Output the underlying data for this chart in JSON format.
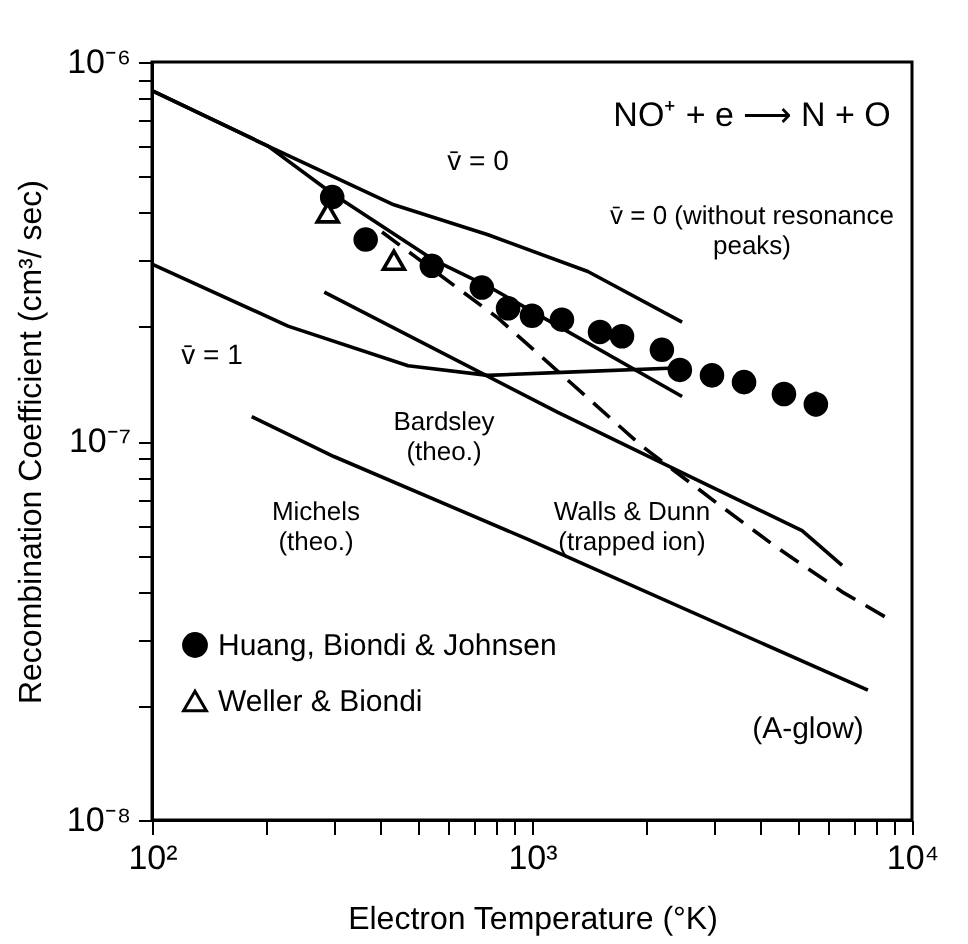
{
  "chart_data": {
    "type": "line",
    "xlabel": "Electron Temperature   (°K)",
    "ylabel": "Recombination Coefficient  (cm³/ sec)",
    "log": "xy",
    "grid": false,
    "legend": "bottom left",
    "xlim": [
      100,
      10000
    ],
    "ylim": [
      1e-08,
      1e-06
    ],
    "xticks": [
      {
        "value": 100,
        "label": "10²"
      },
      {
        "value": 200,
        "label": null
      },
      {
        "value": 300,
        "label": null
      },
      {
        "value": 400,
        "label": null
      },
      {
        "value": 500,
        "label": null
      },
      {
        "value": 600,
        "label": null
      },
      {
        "value": 700,
        "label": null
      },
      {
        "value": 800,
        "label": null
      },
      {
        "value": 900,
        "label": null
      },
      {
        "value": 1000,
        "label": "10³"
      },
      {
        "value": 2000,
        "label": null
      },
      {
        "value": 3000,
        "label": null
      },
      {
        "value": 4000,
        "label": null
      },
      {
        "value": 5000,
        "label": null
      },
      {
        "value": 6000,
        "label": null
      },
      {
        "value": 7000,
        "label": null
      },
      {
        "value": 8000,
        "label": null
      },
      {
        "value": 9000,
        "label": null
      },
      {
        "value": 10000,
        "label": "10⁴"
      }
    ],
    "yticks": [
      {
        "value": 1e-08,
        "label": "10⁻⁸"
      },
      {
        "value": 2e-08,
        "label": null
      },
      {
        "value": 3e-08,
        "label": null
      },
      {
        "value": 4e-08,
        "label": null
      },
      {
        "value": 5e-08,
        "label": null
      },
      {
        "value": 6e-08,
        "label": null
      },
      {
        "value": 7e-08,
        "label": null
      },
      {
        "value": 8e-08,
        "label": null
      },
      {
        "value": 9e-08,
        "label": null
      },
      {
        "value": 1e-07,
        "label": "10⁻⁷"
      },
      {
        "value": 2e-07,
        "label": null
      },
      {
        "value": 3e-07,
        "label": null
      },
      {
        "value": 4e-07,
        "label": null
      },
      {
        "value": 5e-07,
        "label": null
      },
      {
        "value": 6e-07,
        "label": null
      },
      {
        "value": 7e-07,
        "label": null
      },
      {
        "value": 8e-07,
        "label": null
      },
      {
        "value": 9e-07,
        "label": null
      },
      {
        "value": 1e-06,
        "label": "10⁻⁶"
      }
    ],
    "series": [
      {
        "color": "#000000",
        "line_style": "solid",
        "x": [
          100,
          202,
          433,
          766,
          1403,
          2483
        ],
        "values": [
          8.4e-07,
          6e-07,
          4.2e-07,
          3.5e-07,
          2.8e-07,
          2.06e-07
        ]
      },
      {
        "color": "#000000",
        "line_style": "solid",
        "x": [
          100,
          202,
          298,
          552,
          766,
          2483
        ],
        "values": [
          8.4e-07,
          6e-07,
          4.5e-07,
          3e-07,
          2.56e-07,
          1.31e-07
        ]
      },
      {
        "color": "#000000",
        "line_style": "solid",
        "x": [
          100,
          228,
          472,
          766,
          1245,
          2483
        ],
        "values": [
          2.93e-07,
          2.01e-07,
          1.58e-07,
          1.49e-07,
          1.52e-07,
          1.56e-07
        ]
      },
      {
        "color": "#000000",
        "line_style": "solid",
        "x": [
          284,
          1170,
          2575,
          5137,
          6546
        ],
        "values": [
          2.47e-07,
          1.19e-07,
          8.1e-08,
          5.8e-08,
          4.7e-08
        ]
      },
      {
        "color": "#000000",
        "line_style": "dashed",
        "x": [
          403,
          814,
          1945,
          3162,
          4335,
          6546,
          8650
        ],
        "values": [
          3.56e-07,
          2.11e-07,
          9.7e-08,
          6.7e-08,
          5.3e-08,
          4e-08,
          3.4e-08
        ]
      },
      {
        "color": "#000000",
        "line_style": "solid",
        "x": [
          183,
          301,
          976,
          7656
        ],
        "values": [
          1.16e-07,
          9.1e-08,
          5.5e-08,
          2.2e-08
        ]
      },
      {
        "type": "scatter",
        "name": "Huang, Biondi & Johnsen",
        "color": "#000000",
        "marker": "circle",
        "x": [
          298,
          365,
          545,
          738,
          865,
          1000,
          1199,
          1510,
          1725,
          2197,
          2450,
          2976,
          3614,
          4603,
          5585
        ],
        "values": [
          4.4e-07,
          3.4e-07,
          2.9e-07,
          2.54e-07,
          2.24e-07,
          2.14e-07,
          2.09e-07,
          1.94e-07,
          1.89e-07,
          1.74e-07,
          1.54e-07,
          1.49e-07,
          1.43e-07,
          1.33e-07,
          1.25e-07
        ],
        "errors": [
          null,
          null,
          null,
          null,
          null,
          null,
          null,
          null,
          null,
          null,
          null,
          null,
          null,
          null,
          [
            1.16e-07,
            1.35e-07
          ]
        ]
      },
      {
        "type": "scatter",
        "name": "Weller & Biondi",
        "color": "#000000",
        "marker": "triangle",
        "x": [
          290,
          433
        ],
        "values": [
          4e-07,
          3e-07
        ]
      }
    ],
    "annotations": [
      "NO⁺ + e ⟶ N + O",
      "(A-glow)",
      "v̄ = 0",
      "v̄ = 0 (without resonance\npeaks)",
      "v̄ = 1",
      "Bardsley\n(theo.)",
      "Michels\n(theo.)",
      "Walls & Dunn\n(trapped ion)"
    ]
  }
}
